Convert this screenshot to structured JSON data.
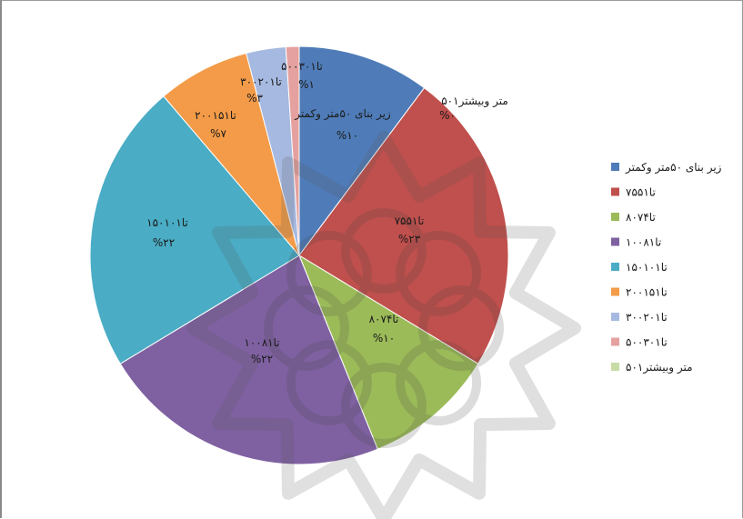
{
  "chart_data": {
    "type": "pie",
    "title": "",
    "legend_position": "right",
    "slices": [
      {
        "label": "زیر بنای ۵۰متر وکمتر",
        "value": 10,
        "percent_label": "%۱۰",
        "color": "#4f7cb8"
      },
      {
        "label": "۷۵تا۵۱",
        "value": 23,
        "percent_label": "%۲۳",
        "color": "#c0504d"
      },
      {
        "label": "۸۰تا۷۴",
        "value": 10,
        "percent_label": "%۱۰",
        "color": "#9bbb59"
      },
      {
        "label": "۱۰۰تا۸۱",
        "value": 22,
        "percent_label": "%۲۲",
        "color": "#7f61a1"
      },
      {
        "label": "۱۵۰تا۱۰۱",
        "value": 22,
        "percent_label": "%۲۲",
        "color": "#4aacc5"
      },
      {
        "label": "۲۰۰تا۱۵۱",
        "value": 7,
        "percent_label": "%۷",
        "color": "#f39b48"
      },
      {
        "label": "۳۰۰تا۲۰۱",
        "value": 3,
        "percent_label": "%۳",
        "color": "#a6b9e0"
      },
      {
        "label": "۵۰۰تا۳۰۱",
        "value": 1,
        "percent_label": "%۱",
        "color": "#e4a19f"
      },
      {
        "label": "۵۰۱متر وبیشتر",
        "value": 0,
        "percent_label": "%۰",
        "color": "#c6dba5"
      }
    ]
  }
}
